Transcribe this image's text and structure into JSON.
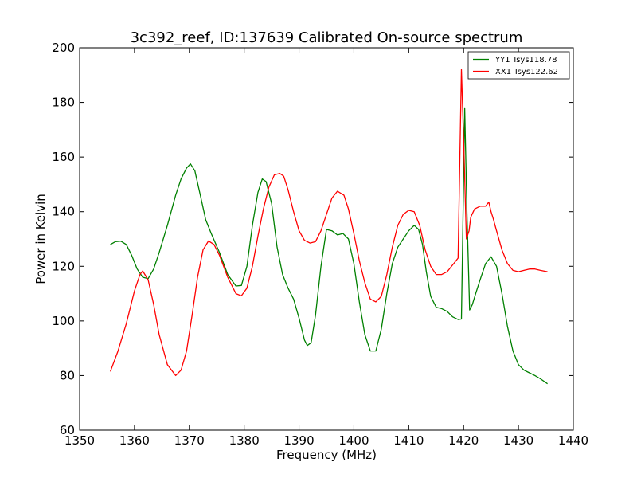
{
  "chart_data": {
    "type": "line",
    "title": "3c392_reef, ID:137639 Calibrated On-source spectrum",
    "xlabel": "Frequency (MHz)",
    "ylabel": "Power in Kelvin",
    "xlim": [
      1350,
      1440
    ],
    "ylim": [
      60,
      200
    ],
    "xticks": [
      1350,
      1360,
      1370,
      1380,
      1390,
      1400,
      1410,
      1420,
      1430,
      1440
    ],
    "yticks": [
      60,
      80,
      100,
      120,
      140,
      160,
      180,
      200
    ],
    "grid": false,
    "legend_position": "top-right",
    "series": [
      {
        "name": "YY1 Tsys118.78",
        "color": "#008000",
        "x": [
          1355.6,
          1356.5,
          1357.5,
          1358.5,
          1359.5,
          1360.5,
          1361.5,
          1362.5,
          1363.5,
          1364.5,
          1366,
          1367.5,
          1368.5,
          1369.5,
          1370.2,
          1371,
          1372,
          1373,
          1374,
          1375.5,
          1377,
          1378.5,
          1379.5,
          1380.5,
          1381.5,
          1382.5,
          1383.3,
          1384,
          1385,
          1386,
          1387,
          1388,
          1389,
          1390,
          1391,
          1391.5,
          1392.2,
          1393,
          1394,
          1395,
          1396,
          1397,
          1398,
          1399,
          1400,
          1401,
          1402,
          1403,
          1404,
          1405,
          1406,
          1407,
          1408,
          1409,
          1410,
          1411,
          1411.8,
          1412.5,
          1413.2,
          1414,
          1415,
          1416,
          1417,
          1418,
          1419,
          1419.6,
          1420.2,
          1420.6,
          1421.1,
          1421.6,
          1422.2,
          1423,
          1424,
          1425,
          1426,
          1427,
          1428,
          1429,
          1430,
          1431,
          1432,
          1433,
          1434,
          1435.3
        ],
        "values": [
          128,
          129,
          129.2,
          128,
          124,
          119,
          116,
          115.5,
          119,
          125,
          135,
          146,
          152,
          156,
          157.5,
          155,
          146,
          137,
          132,
          125,
          117,
          112.8,
          113,
          120,
          135,
          147,
          152,
          151,
          143,
          127,
          117,
          112,
          108,
          101,
          93,
          91,
          92,
          102,
          120,
          133.5,
          133,
          131.5,
          132,
          130,
          121,
          107,
          95,
          89,
          89,
          97,
          110,
          121,
          127,
          130,
          133,
          135,
          133.5,
          128,
          118,
          109,
          105,
          104.5,
          103.5,
          101.5,
          100.5,
          100.7,
          178,
          140,
          104,
          106,
          110,
          115,
          121,
          123.5,
          120,
          110,
          98,
          89,
          84,
          82,
          81,
          80,
          78.8,
          77
        ]
      },
      {
        "name": "XX1 Tsys122.62",
        "color": "#ff0000",
        "x": [
          1355.6,
          1357,
          1358.5,
          1360,
          1361,
          1361.5,
          1362.5,
          1363.5,
          1364.5,
          1366,
          1367.5,
          1368.5,
          1369.5,
          1370.5,
          1371.5,
          1372.5,
          1373.5,
          1374.5,
          1375.5,
          1377,
          1378.5,
          1379.5,
          1380.5,
          1381.5,
          1382.5,
          1383.5,
          1384.5,
          1385.5,
          1386.5,
          1387.2,
          1388,
          1389,
          1390,
          1391,
          1392,
          1393,
          1394,
          1395,
          1396,
          1397,
          1398.2,
          1399,
          1400,
          1401,
          1402,
          1403,
          1404,
          1405,
          1406,
          1407,
          1408,
          1409,
          1410,
          1411,
          1412,
          1413,
          1414,
          1415,
          1416,
          1417,
          1418,
          1419,
          1419.6,
          1420.1,
          1420.5,
          1421,
          1421.3,
          1422,
          1423,
          1424,
          1424.6,
          1425,
          1425.4,
          1426,
          1427,
          1428,
          1429,
          1430,
          1431,
          1432,
          1433,
          1434,
          1435.3
        ],
        "values": [
          81.5,
          89,
          99,
          111,
          117,
          118.3,
          115,
          106,
          95,
          84,
          80,
          82,
          89,
          102,
          116,
          126,
          129.3,
          128,
          124,
          116,
          110,
          109.2,
          112,
          120,
          131,
          141,
          149,
          153.5,
          154,
          153,
          148,
          140,
          133,
          129.5,
          128.5,
          129,
          133,
          139,
          145,
          147.5,
          146,
          141,
          132,
          122,
          114,
          108,
          107,
          109,
          117,
          127,
          135,
          139,
          140.5,
          140,
          135,
          126,
          120,
          117,
          117,
          118,
          120.5,
          123,
          192,
          160,
          130,
          133,
          138,
          141,
          142,
          142,
          143.5,
          140,
          137.5,
          133,
          126,
          121,
          118.5,
          118,
          118.5,
          119,
          119,
          118.5,
          118
        ]
      }
    ]
  }
}
